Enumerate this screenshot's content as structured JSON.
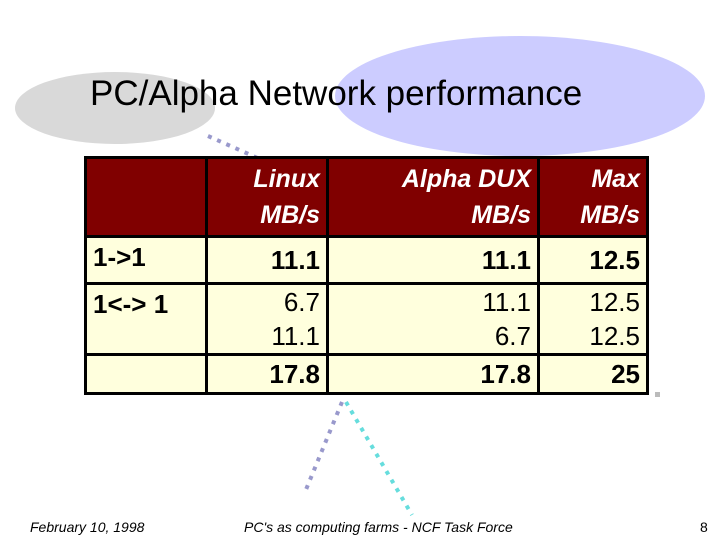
{
  "title": "PC/Alpha Network performance",
  "table": {
    "header": [
      {
        "line1": "Linux",
        "line2": "MB/s"
      },
      {
        "line1": "Alpha DUX",
        "line2": "MB/s"
      },
      {
        "line1": "Max",
        "line2": "MB/s"
      }
    ],
    "rows": [
      {
        "label": "1->1",
        "cells": [
          "11.1",
          "11.1",
          "12.5"
        ]
      },
      {
        "label": "1<-> 1",
        "cells": [
          "6.7",
          "11.1",
          "12.5"
        ]
      },
      {
        "cells": [
          "11.1",
          "6.7",
          "12.5"
        ]
      },
      {
        "cells": [
          "17.8",
          "17.8",
          "25"
        ]
      }
    ]
  },
  "footer": {
    "date": "February 10, 1998",
    "center": "PC's as computing farms - NCF Task Force",
    "page": "8"
  }
}
